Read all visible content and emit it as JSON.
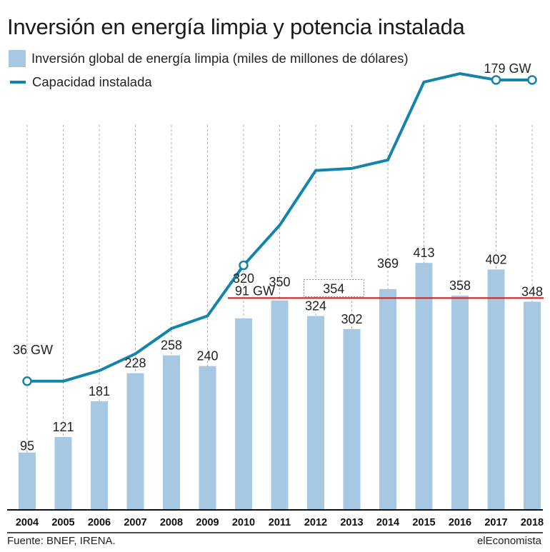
{
  "title": "Inversión en energía limpia y potencia instalada",
  "legend": {
    "bars": "Inversión global de energía limpia (miles de millones de dólares)",
    "line": "Capacidad instalada"
  },
  "source": "Fuente: BNEF, IRENA.",
  "brand": "elEconomista",
  "colors": {
    "bar": "#a6c8e2",
    "line": "#1484ac",
    "reference": "#d22b2b",
    "grid": "#b0b0b0"
  },
  "chart_data": {
    "type": "bar",
    "categories": [
      "2004",
      "2005",
      "2006",
      "2007",
      "2008",
      "2009",
      "2010",
      "2011",
      "2012",
      "2013",
      "2014",
      "2015",
      "2016",
      "2017",
      "2018"
    ],
    "series": [
      {
        "name": "Inversión global de energía limpia (miles de millones de dólares)",
        "type": "bar",
        "values": [
          95,
          121,
          181,
          228,
          258,
          240,
          320,
          350,
          324,
          302,
          369,
          413,
          358,
          402,
          348
        ]
      },
      {
        "name": "Capacidad instalada",
        "type": "line",
        "unit": "GW",
        "values": [
          36,
          36,
          41,
          49,
          61,
          67,
          91,
          110,
          136,
          137,
          141,
          178,
          182,
          179,
          179
        ]
      }
    ],
    "line_labels": [
      {
        "category": "2004",
        "text": "36 GW"
      },
      {
        "category": "2010",
        "text": "91 GW"
      },
      {
        "category": "2017",
        "text": "179 GW"
      }
    ],
    "reference_line": {
      "value": 354,
      "label": "354",
      "from": "2010",
      "to": "2018"
    },
    "ylim": [
      0,
      480
    ],
    "grid": "vertical dashed",
    "legend_position": "top-left"
  }
}
